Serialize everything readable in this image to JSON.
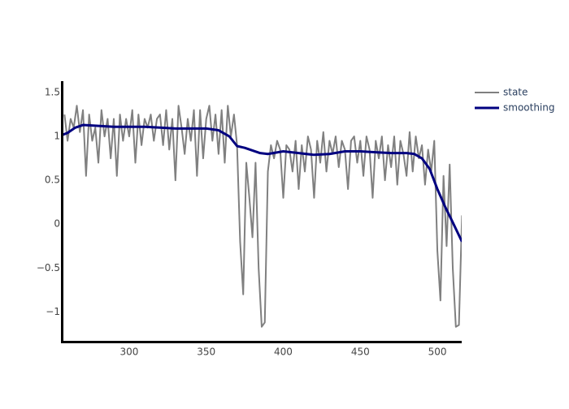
{
  "chart_data": {
    "type": "line",
    "xlim": [
      257.3,
      515.8
    ],
    "ylim": [
      -1.33,
      1.63
    ],
    "xticks": [
      300,
      350,
      400,
      450,
      500
    ],
    "yticks": [
      {
        "value": -1,
        "label": "−1"
      },
      {
        "value": -0.5,
        "label": "−0.5"
      },
      0,
      0.5,
      1,
      1.5
    ],
    "legend": "top-right",
    "series": [
      {
        "name": "state",
        "color": "#808080",
        "x": [
          258,
          260,
          262,
          264,
          266,
          268,
          270,
          272,
          274,
          276,
          278,
          280,
          282,
          284,
          286,
          288,
          290,
          292,
          294,
          296,
          298,
          300,
          302,
          304,
          306,
          308,
          310,
          312,
          314,
          316,
          318,
          320,
          322,
          324,
          326,
          328,
          330,
          332,
          334,
          336,
          338,
          340,
          342,
          344,
          346,
          348,
          350,
          352,
          354,
          356,
          358,
          360,
          362,
          364,
          366,
          368,
          370,
          372,
          374,
          376,
          378,
          380,
          382,
          384,
          386,
          388,
          390,
          392,
          394,
          396,
          398,
          400,
          402,
          404,
          406,
          408,
          410,
          412,
          414,
          416,
          418,
          420,
          422,
          424,
          426,
          428,
          430,
          432,
          434,
          436,
          438,
          440,
          442,
          444,
          446,
          448,
          450,
          452,
          454,
          456,
          458,
          460,
          462,
          464,
          466,
          468,
          470,
          472,
          474,
          476,
          478,
          480,
          482,
          484,
          486,
          488,
          490,
          492,
          494,
          496,
          498,
          500,
          502,
          504,
          506,
          508,
          510,
          512,
          514,
          516
        ],
        "values": [
          1.25,
          0.95,
          1.2,
          1.1,
          1.35,
          1.05,
          1.3,
          0.55,
          1.25,
          0.95,
          1.1,
          0.7,
          1.3,
          1.0,
          1.2,
          0.75,
          1.2,
          0.55,
          1.25,
          0.95,
          1.2,
          1.0,
          1.3,
          0.7,
          1.25,
          0.9,
          1.2,
          1.1,
          1.25,
          0.95,
          1.2,
          1.25,
          0.9,
          1.3,
          0.85,
          1.2,
          0.5,
          1.35,
          1.1,
          0.8,
          1.2,
          0.95,
          1.3,
          0.55,
          1.3,
          0.75,
          1.2,
          1.35,
          0.95,
          1.25,
          0.8,
          1.3,
          0.7,
          1.35,
          1.0,
          1.25,
          0.9,
          -0.2,
          -0.8,
          0.7,
          0.3,
          -0.15,
          0.7,
          -0.5,
          -1.17,
          -1.12,
          0.6,
          0.9,
          0.75,
          0.95,
          0.85,
          0.3,
          0.9,
          0.85,
          0.6,
          0.95,
          0.4,
          0.9,
          0.6,
          1.0,
          0.85,
          0.3,
          0.95,
          0.7,
          1.05,
          0.6,
          0.95,
          0.8,
          1.0,
          0.65,
          0.95,
          0.85,
          0.4,
          0.95,
          1.0,
          0.7,
          0.95,
          0.55,
          1.0,
          0.85,
          0.3,
          0.95,
          0.75,
          1.0,
          0.5,
          0.9,
          0.65,
          1.0,
          0.45,
          0.95,
          0.8,
          0.55,
          1.05,
          0.6,
          1.0,
          0.75,
          0.9,
          0.45,
          0.85,
          0.6,
          0.95,
          -0.3,
          -0.87,
          0.55,
          -0.25,
          0.68,
          -0.5,
          -1.17,
          -1.15,
          0.1
        ]
      },
      {
        "name": "smoothing",
        "color": "#000080",
        "x": [
          257,
          260,
          265,
          270,
          280,
          290,
          300,
          310,
          320,
          330,
          340,
          350,
          358,
          365,
          370,
          375,
          380,
          385,
          390,
          400,
          410,
          420,
          430,
          440,
          450,
          460,
          470,
          480,
          485,
          490,
          495,
          500,
          505,
          510,
          516
        ],
        "values": [
          1.02,
          1.04,
          1.1,
          1.13,
          1.12,
          1.11,
          1.11,
          1.11,
          1.1,
          1.09,
          1.09,
          1.09,
          1.07,
          1.0,
          0.89,
          0.87,
          0.84,
          0.81,
          0.8,
          0.83,
          0.81,
          0.79,
          0.8,
          0.83,
          0.83,
          0.82,
          0.81,
          0.81,
          0.8,
          0.75,
          0.63,
          0.4,
          0.2,
          0.02,
          -0.2
        ]
      }
    ]
  }
}
